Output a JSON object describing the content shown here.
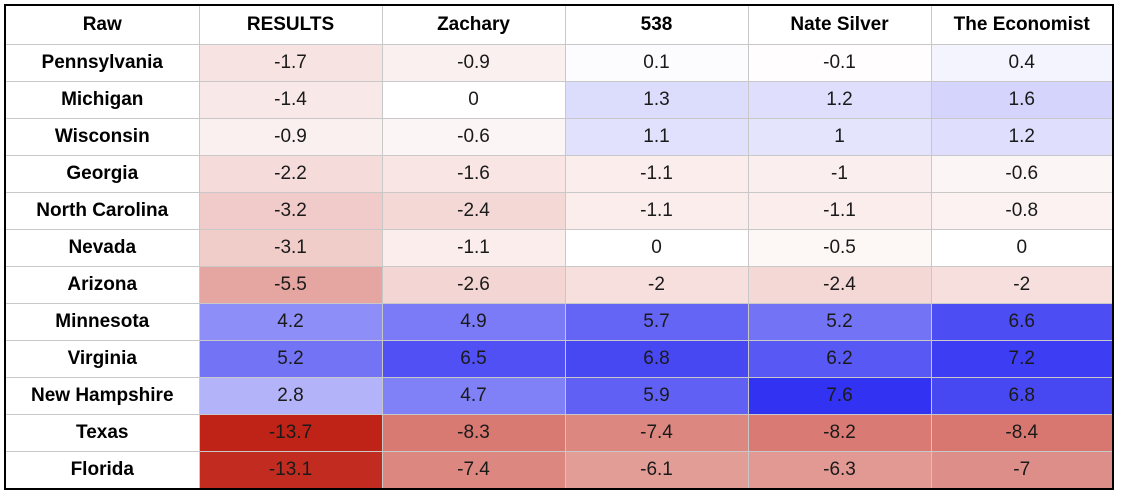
{
  "chart_data": {
    "type": "heatmap",
    "corner_label": "Raw",
    "columns": [
      "RESULTS",
      "Zachary",
      "538",
      "Nate Silver",
      "The Economist"
    ],
    "rows": [
      "Pennsylvania",
      "Michigan",
      "Wisconsin",
      "Georgia",
      "North Carolina",
      "Nevada",
      "Arizona",
      "Minnesota",
      "Virginia",
      "New Hampshire",
      "Texas",
      "Florida"
    ],
    "values": [
      [
        "-1.7",
        "-0.9",
        "0.1",
        "-0.1",
        "0.4"
      ],
      [
        "-1.4",
        "0",
        "1.3",
        "1.2",
        "1.6"
      ],
      [
        "-0.9",
        "-0.6",
        "1.1",
        "1",
        "1.2"
      ],
      [
        "-2.2",
        "-1.6",
        "-1.1",
        "-1",
        "-0.6"
      ],
      [
        "-3.2",
        "-2.4",
        "-1.1",
        "-1.1",
        "-0.8"
      ],
      [
        "-3.1",
        "-1.1",
        "0",
        "-0.5",
        "0"
      ],
      [
        "-5.5",
        "-2.6",
        "-2",
        "-2.4",
        "-2"
      ],
      [
        "4.2",
        "4.9",
        "5.7",
        "5.2",
        "6.6"
      ],
      [
        "5.2",
        "6.5",
        "6.8",
        "6.2",
        "7.2"
      ],
      [
        "2.8",
        "4.7",
        "5.9",
        "7.6",
        "6.8"
      ],
      [
        "-13.7",
        "-8.3",
        "-7.4",
        "-8.2",
        "-8.4"
      ],
      [
        "-13.1",
        "-7.4",
        "-6.1",
        "-6.3",
        "-7"
      ]
    ],
    "colors": {
      "negative": "#bf2216",
      "positive": "#3232f2",
      "neutral": "#ffffff"
    }
  }
}
